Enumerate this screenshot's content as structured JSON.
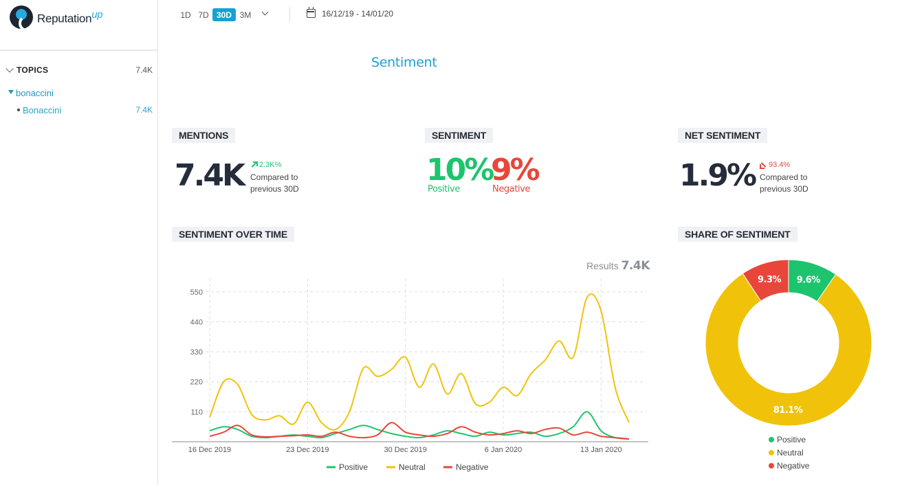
{
  "brand": {
    "logo_text": "Reputation",
    "logo_suffix": "up"
  },
  "sidebar": {
    "topics_label": "TOPICS",
    "topics_count": "7.4K",
    "group": {
      "label": "bonaccini"
    },
    "item": {
      "label": "Bonaccini",
      "count": "7.4K"
    }
  },
  "topbar": {
    "ranges": [
      "1D",
      "7D",
      "30D",
      "3M"
    ],
    "active_range": "30D",
    "date_range": "16/12/19 - 14/01/20"
  },
  "page_title": "Sentiment",
  "mentions": {
    "label": "MENTIONS",
    "value": "7.4K",
    "delta": "2.3K%",
    "compare_line1": "Compared to",
    "compare_line2": "previous 30D"
  },
  "sentiment": {
    "label": "SENTIMENT",
    "positive_value": "10%",
    "positive_label": "Positive",
    "negative_value": "9%",
    "negative_label": "Negative"
  },
  "net_sentiment": {
    "label": "NET SENTIMENT",
    "value": "1.9%",
    "delta": "93.4%",
    "compare_line1": "Compared to",
    "compare_line2": "previous 30D"
  },
  "sentiment_over_time": {
    "label": "SENTIMENT OVER TIME",
    "results_label": "Results",
    "results_value": "7.4K"
  },
  "share_of_sentiment": {
    "label": "SHARE OF SENTIMENT"
  },
  "colors": {
    "positive": "#1dc46d",
    "neutral": "#f0c30a",
    "negative": "#e8463a",
    "accent": "#1aa0d2"
  },
  "chart_data": [
    {
      "type": "line",
      "title": "",
      "x_labels": [
        "16 Dec 2019",
        "23 Dec 2019",
        "30 Dec 2019",
        "6 Jan 2020",
        "13 Jan 2020"
      ],
      "x": [
        0,
        1,
        2,
        3,
        4,
        5,
        6,
        7,
        8,
        9,
        10,
        11,
        12,
        13,
        14,
        15,
        16,
        17,
        18,
        19,
        20,
        21,
        22,
        23,
        24,
        25,
        26,
        27,
        28,
        29,
        30
      ],
      "y_ticks": [
        110,
        220,
        330,
        440,
        550
      ],
      "ylim": [
        0,
        600
      ],
      "grid": true,
      "legend": "bottom",
      "series": [
        {
          "name": "Positive",
          "color": "#1dc46d",
          "values": [
            40,
            55,
            45,
            20,
            15,
            20,
            25,
            20,
            15,
            30,
            45,
            60,
            45,
            30,
            20,
            15,
            25,
            40,
            30,
            20,
            35,
            25,
            30,
            35,
            20,
            30,
            55,
            110,
            40,
            15,
            10
          ]
        },
        {
          "name": "Neutral",
          "color": "#f0c30a",
          "values": [
            90,
            220,
            210,
            100,
            80,
            95,
            65,
            145,
            70,
            45,
            110,
            270,
            240,
            265,
            310,
            200,
            285,
            175,
            250,
            140,
            145,
            200,
            170,
            250,
            300,
            370,
            310,
            530,
            480,
            200,
            70
          ]
        },
        {
          "name": "Negative",
          "color": "#e8463a",
          "values": [
            20,
            35,
            60,
            25,
            18,
            20,
            22,
            25,
            20,
            35,
            20,
            15,
            25,
            70,
            35,
            25,
            20,
            30,
            55,
            35,
            25,
            30,
            40,
            30,
            45,
            50,
            25,
            35,
            20,
            15,
            10
          ]
        }
      ]
    },
    {
      "type": "pie",
      "title": "",
      "donut": true,
      "legend": "bottom",
      "slices": [
        {
          "name": "Positive",
          "value": 9.6,
          "label": "9.6%",
          "color": "#1dc46d"
        },
        {
          "name": "Neutral",
          "value": 81.1,
          "label": "81.1%",
          "color": "#f0c30a"
        },
        {
          "name": "Negative",
          "value": 9.3,
          "label": "9.3%",
          "color": "#e8463a"
        }
      ]
    }
  ]
}
